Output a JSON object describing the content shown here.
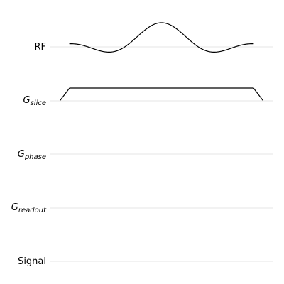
{
  "channels": [
    {
      "name": "RF",
      "symbol": "RF",
      "subscript": ""
    },
    {
      "name": "G_slice",
      "symbol": "G",
      "subscript": "slice"
    },
    {
      "name": "G_phase",
      "symbol": "G",
      "subscript": "phase"
    },
    {
      "name": "G_readout",
      "symbol": "G",
      "subscript": "readout"
    },
    {
      "name": "Signal",
      "symbol": "Signal",
      "subscript": ""
    }
  ],
  "waveforms": {
    "rf": {
      "shape": "sinc-pulse",
      "color": "#000000"
    },
    "slice_gradient": {
      "shape": "trapezoid",
      "color": "#000000"
    }
  },
  "colors": {
    "baseline": "#e6e6e6",
    "trace": "#000000",
    "background": "#ffffff"
  }
}
